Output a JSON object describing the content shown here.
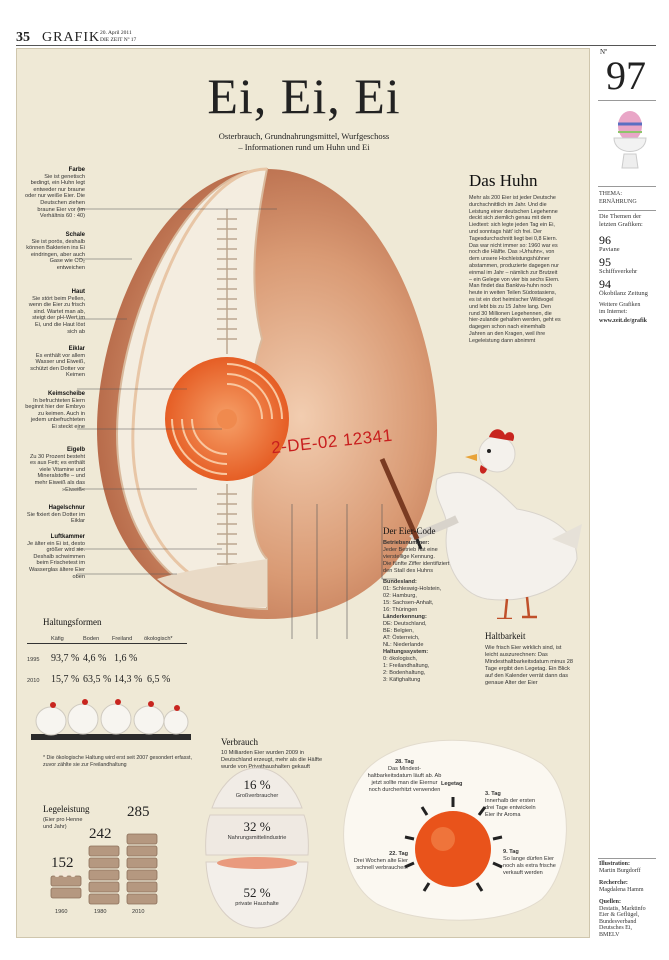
{
  "header": {
    "page_no": "35",
    "section": "GRAFIK",
    "date": "20. April 2011",
    "paper": "DIE ZEIT  Nº 17"
  },
  "poster": {
    "title": "Ei, Ei, Ei",
    "subtitle_1": "Osterbrauch, Grundnahrungsmittel, Wurfgeschoss",
    "subtitle_2": "– Informationen rund um Huhn und Ei",
    "egg_code": "2-DE-02 12341"
  },
  "egg_labels": [
    {
      "title": "Farbe",
      "text": "Sie ist genetisch bedingt, ein Huhn legt entweder nur braune oder nur weiße Eier. Die Deutschen ziehen braune Eier vor (im Verhältnis 60 : 40)"
    },
    {
      "title": "Schale",
      "text": "Sie ist porös, deshalb können Bakterien ins Ei eindringen, aber auch Gase wie CO₂ entweichen"
    },
    {
      "title": "Haut",
      "text": "Sie stört beim Pellen, wenn die Eier zu frisch sind. Wartet man ab, steigt der pH-Wert im Ei, und die Haut löst sich ab"
    },
    {
      "title": "Eiklar",
      "text": "Es enthält vor allem Wasser und Eiweiß, schützt den Dotter vor Keimen"
    },
    {
      "title": "Keimscheibe",
      "text": "In befruchteten Eiern beginnt hier der Embryo zu keimen. Auch in jedem unbefruchteten Ei steckt eine"
    },
    {
      "title": "Eigelb",
      "text": "Zu 30 Prozent besteht es aus Fett; es enthält viele Vitamine und Mineralstoffe – und mehr Eiweiß als das »Eiweiß«"
    },
    {
      "title": "Hagelschnur",
      "text": "Sie fixiert den Dotter im Eiklar"
    },
    {
      "title": "Luftkammer",
      "text": "Je älter ein Ei ist, desto größer wird sie. Deshalb schwimmen beim Frischetest im Wasserglas ältere Eier oben"
    }
  ],
  "huhn": {
    "title": "Das Huhn",
    "text": "Mehr als 200 Eier ist jeder Deutsche durchschnittlich im Jahr. Und die Leistung einer deutschen Legehenne deckt sich ziemlich genau mit dem Liedtext: sich legte jeden Tag ein Ei, und sonntags hätt' ich frei. Der Tagesdurchschnitt liegt bei 0,8 Eiern. Das war nicht immer so: 1960 war es noch die Hälfte. Das »Urhuhn«, von dem unsere Hochleistungshühner abstammen, produzierte dagegen nur einmal im Jahr – nämlich zur Brutzeit – ein Gelege von vier bis sechs Eiern. Man findet das Bankiva-huhn noch heute in weiten Teilen Südostasiens, es ist ein dort heimischer Wildvogel und lebt bis zu 15 Jahre lang. Den rund 30 Millionen Legehennen, die hier-zulande gehalten werden, geht es dagegen schon nach einemhalb Jahren an den Kragen, weil ihre Legeleistung dann abnimmt"
  },
  "eiercode": {
    "title": "Der Eier-Code",
    "blocks": [
      {
        "title": "Betriebsnummer:",
        "lines": [
          "Jeder Betrieb hat eine",
          "vierstellige Kennung.",
          "Die fünfte Ziffer identifiziert",
          "den Stall des Huhns"
        ]
      },
      {
        "title": "Bundesland:",
        "lines": [
          "01: Schleswig-Holstein,",
          "02: Hamburg,",
          "15: Sachsen-Anhalt,",
          "16: Thüringen"
        ]
      },
      {
        "title": "Länderkennung:",
        "lines": [
          "DE: Deutschland,",
          "BE: Belgien,",
          "AT: Österreich,",
          "NL: Niederlande"
        ]
      },
      {
        "title": "Haltungssystem:",
        "lines": [
          "0: ökologisch,",
          "1: Freilandhaltung,",
          "2: Bodenhaltung,",
          "3: Käfighaltung"
        ]
      }
    ]
  },
  "haltungsformen": {
    "title": "Haltungsformen",
    "columns": [
      "Käfig",
      "Boden",
      "Freiland",
      "ökologisch*"
    ],
    "rows": [
      {
        "year": "1995",
        "values": [
          "93,7 %",
          "4,6 %",
          "1,6 %",
          ""
        ]
      },
      {
        "year": "2010",
        "values": [
          "15,7 %",
          "63,5 %",
          "14,3 %",
          "6,5 %"
        ]
      }
    ],
    "footnote": "* Die ökologische Haltung wird erst seit 2007 gesondert erfasst, zuvor zählte sie zur Freilandhaltung"
  },
  "legeleistung": {
    "title": "Legeleistung",
    "subtitle": "(Eier pro Henne und Jahr)",
    "bars": [
      {
        "year": "1960",
        "value": "152"
      },
      {
        "year": "1980",
        "value": "242"
      },
      {
        "year": "2010",
        "value": "285"
      }
    ]
  },
  "verbrauch": {
    "title": "Verbrauch",
    "text": "10 Milliarden Eier wurden 2009 in Deutschland erzeugt, mehr als die Hälfte wurde von Privathaushalten gekauft",
    "slices": [
      {
        "pct": "16 %",
        "label": "Großverbraucher"
      },
      {
        "pct": "32 %",
        "label": "Nahrungsmittelindustrie"
      },
      {
        "pct": "52 %",
        "label": "private Haushalte"
      }
    ]
  },
  "haltbarkeit": {
    "title": "Haltbarkeit",
    "text": "Wie frisch Eier wirklich sind, ist leicht auszurechnen: Das Mindesthaltbarkeitsdatum minus 28 Tage ergibt den Legetag. Ein Blick auf den Kalender verrät dann das genaue Alter der Eier",
    "legetag": "Legetag",
    "t28_title": "28. Tag",
    "t28_text": "Das Mindest-haltbarkeitsdatum läuft ab. Ab jetzt sollte man die Eiernur noch durcherhitzt verwenden",
    "t3_title": "3. Tag",
    "t3_text": "Innerhalb der ersten drei Tage entwickeln Eier ihr Aroma",
    "t22_title": "22. Tag",
    "t22_text": "Drei Wochen alte Eier schnell verbrauchen!",
    "t9_title": "9. Tag",
    "t9_text": "So lange dürfen Eier noch als extra frische verkauft werden"
  },
  "sidebar": {
    "no_label": "Nº",
    "number": "97",
    "thema_1": "THEMA:",
    "thema_2": "ERNÄHRUNG",
    "intro": "Die Themen der letzten Grafiken:",
    "items": [
      {
        "num": "96",
        "label": "Paviane"
      },
      {
        "num": "95",
        "label": "Schiffsverkehr"
      },
      {
        "num": "94",
        "label": "Ökobilanz Zeitung"
      }
    ],
    "more_1": "Weitere Grafiken",
    "more_2": "im Internet:",
    "link": "www.zeit.de/grafik",
    "ill_title": "Illustration:",
    "ill_name": "Martin Burgdorff",
    "rec_title": "Recherche:",
    "rec_name": "Magdalena Hamm",
    "src_title": "Quellen:",
    "src_lines": [
      "Destatis, Marktinfo",
      "Eier & Geflügel,",
      "Bundesverband",
      "Deutsches Ei,",
      "BMELV"
    ]
  }
}
